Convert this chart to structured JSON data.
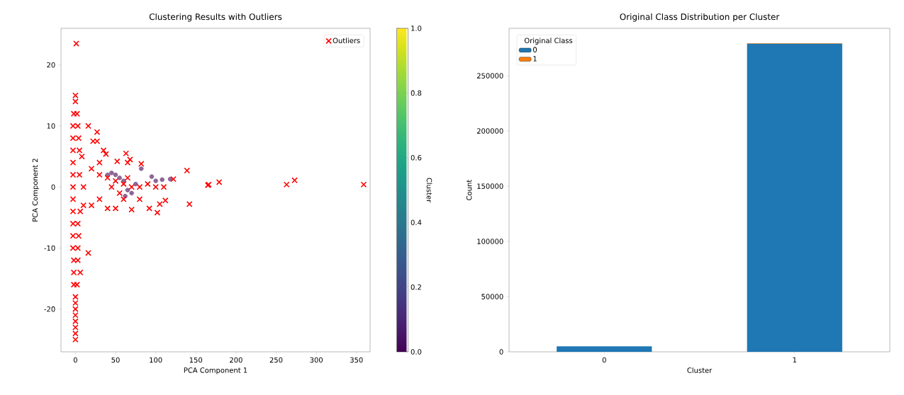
{
  "chart_data": [
    {
      "type": "scatter",
      "title": "Clustering Results with Outliers",
      "xlabel": "PCA Component 1",
      "ylabel": "PCA Component 2",
      "clabel": "Cluster",
      "xlim": [
        -18,
        367
      ],
      "ylim": [
        -27,
        26
      ],
      "xticks": [
        0,
        50,
        100,
        150,
        200,
        250,
        300,
        350
      ],
      "yticks": [
        -20,
        -10,
        0,
        10,
        20
      ],
      "clim": [
        0,
        1
      ],
      "cticks": [
        {
          "value": 0,
          "label": "0.0"
        },
        {
          "value": 0.2,
          "label": "0.2"
        },
        {
          "value": 0.4,
          "label": "0.4"
        },
        {
          "value": 0.6,
          "label": "0.6"
        },
        {
          "value": 0.8,
          "label": "0.8"
        },
        {
          "value": 1,
          "label": "1.0"
        }
      ],
      "legend": "top right",
      "marker": "circle",
      "series": [
        {
          "x": [
            40,
            50,
            55,
            60,
            65,
            70,
            75,
            82,
            95,
            100,
            108,
            118,
            45,
            62
          ],
          "values": [
            2,
            2,
            1.5,
            1,
            -0.5,
            -1,
            0.5,
            3,
            1.7,
            1,
            1.2,
            1.3,
            2.3,
            -1.5
          ],
          "cvalues": [
            0,
            0,
            0,
            0,
            0,
            0,
            0,
            0,
            0,
            0,
            0,
            0,
            0,
            0
          ]
        },
        {
          "name": "Outliers",
          "color": "#ff0000",
          "marker": "cross",
          "x": [
            0,
            0,
            1,
            -2,
            2,
            -3,
            3,
            -3,
            4,
            -3,
            5,
            -3,
            -3,
            -3,
            -3,
            -3,
            -3,
            3,
            -3,
            4,
            -3,
            3,
            -2,
            3,
            -2,
            6,
            -2,
            2,
            0,
            0,
            0,
            0,
            0,
            0,
            0,
            0,
            16,
            6,
            5,
            8,
            10,
            10,
            16,
            27,
            22,
            27,
            35,
            38,
            30,
            52,
            63,
            65,
            68,
            82,
            20,
            30,
            40,
            50,
            60,
            70,
            80,
            90,
            100,
            110,
            122,
            139,
            142,
            30,
            40,
            50,
            70,
            92,
            102,
            105,
            112,
            165,
            166,
            179,
            263,
            273,
            359,
            20,
            60,
            80,
            45,
            55,
            65
          ],
          "values": [
            15,
            14,
            23.5,
            12,
            12,
            10,
            10,
            8,
            8,
            6,
            6,
            4,
            2,
            0,
            -2,
            -4,
            -6,
            -6,
            -8,
            -8,
            -10,
            -10,
            -12,
            -12,
            -14,
            -14,
            -16,
            -16,
            -18,
            -19,
            -20,
            -21,
            -22,
            -23,
            -24,
            -25,
            -10.8,
            -4,
            2,
            5,
            0,
            -3,
            10,
            9,
            7.5,
            7.5,
            6,
            5.4,
            4,
            4.2,
            5.5,
            4,
            4.5,
            3.8,
            3,
            2,
            1.5,
            1,
            0.5,
            0,
            0,
            0.5,
            0,
            0,
            1.3,
            2.7,
            -2.8,
            -2,
            -3.5,
            -3.5,
            -3.7,
            -3.5,
            -4.2,
            -2.8,
            -2.2,
            0.3,
            0.4,
            0.8,
            0.4,
            1.1,
            0.4,
            -3,
            -2,
            -2,
            0,
            -1,
            1.5
          ]
        }
      ]
    },
    {
      "type": "bar",
      "stacked": true,
      "title": "Original Class Distribution per Cluster",
      "xlabel": "Cluster",
      "ylabel": "Count",
      "categories": [
        "0",
        "1"
      ],
      "ylim": [
        0,
        293000
      ],
      "yticks": [
        0,
        50000,
        100000,
        150000,
        200000,
        250000
      ],
      "legend": "top left",
      "legend_title": "Original Class",
      "series": [
        {
          "name": "0",
          "color": "#1f77b4",
          "values": [
            5000,
            279000
          ]
        },
        {
          "name": "1",
          "color": "#ff7f0e",
          "values": [
            0,
            500
          ]
        }
      ]
    }
  ]
}
